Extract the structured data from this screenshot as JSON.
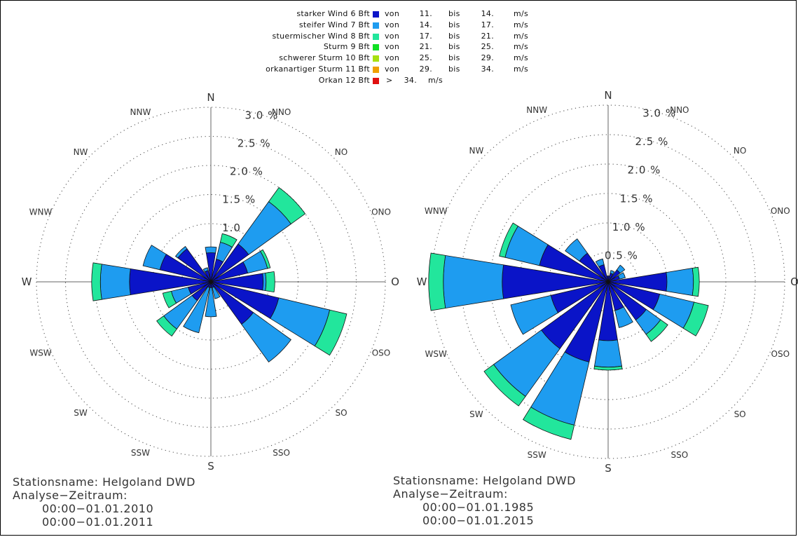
{
  "legend": [
    {
      "name": "starker Wind",
      "bft": "6 Bft",
      "color": "#0a14c8",
      "from_label": "von",
      "from": "11.",
      "to_label": "bis",
      "to": "14.",
      "unit": "m/s"
    },
    {
      "name": "steifer Wind",
      "bft": "7 Bft",
      "color": "#1e9cf0",
      "from_label": "von",
      "from": "14.",
      "to_label": "bis",
      "to": "17.",
      "unit": "m/s"
    },
    {
      "name": "stuermischer Wind",
      "bft": "8 Bft",
      "color": "#22e69c",
      "from_label": "von",
      "from": "17.",
      "to_label": "bis",
      "to": "21.",
      "unit": "m/s"
    },
    {
      "name": "Sturm",
      "bft": "9 Bft",
      "color": "#10e024",
      "from_label": "von",
      "from": "21.",
      "to_label": "bis",
      "to": "25.",
      "unit": "m/s"
    },
    {
      "name": "schwerer Sturm",
      "bft": "10 Bft",
      "color": "#a8e010",
      "from_label": "von",
      "from": "25.",
      "to_label": "bis",
      "to": "29.",
      "unit": "m/s"
    },
    {
      "name": "orkanartiger Sturm",
      "bft": "11 Bft",
      "color": "#f0a000",
      "from_label": "von",
      "from": "29.",
      "to_label": "bis",
      "to": "34.",
      "unit": "m/s"
    },
    {
      "name": "Orkan",
      "bft": "12 Bft",
      "color": "#e01010",
      "from_label": ">",
      "from": "34.",
      "unit": "m/s"
    }
  ],
  "chart_data": [
    {
      "type": "wind-rose",
      "directions": [
        "N",
        "NNO",
        "NO",
        "ONO",
        "O",
        "OSO",
        "SO",
        "SSO",
        "S",
        "SSW",
        "SW",
        "WSW",
        "W",
        "WNW",
        "NW",
        "NNW"
      ],
      "ring_labels": [
        "1.0",
        "1.5 %",
        "2.0 %",
        "2.5 %",
        "3.0 %"
      ],
      "rmax": 3.0,
      "classes": [
        "6 Bft",
        "7 Bft",
        "8 Bft"
      ],
      "series": [
        {
          "name": "6 Bft",
          "values": [
            0.5,
            0.4,
            0.8,
            0.65,
            0.9,
            1.2,
            0.9,
            0.1,
            0.1,
            0.1,
            0.4,
            0.4,
            1.4,
            0.9,
            0.7,
            0.2
          ]
        },
        {
          "name": "7 Bft",
          "values": [
            0.1,
            0.3,
            0.9,
            0.35,
            0.05,
            0.9,
            0.8,
            0.2,
            0.5,
            0.8,
            0.6,
            0.3,
            0.5,
            0.3,
            0.05,
            0.05
          ]
        },
        {
          "name": "8 Bft",
          "values": [
            0.0,
            0.15,
            0.3,
            0.05,
            0.15,
            0.3,
            0.0,
            0.0,
            0.0,
            0.0,
            0.15,
            0.15,
            0.15,
            0.0,
            0.0,
            0.0
          ]
        }
      ],
      "station_label": "Stationsname: Helgoland DWD",
      "period_label": "Analyse−Zeitraum:",
      "period_from": "00:00−01.01.2010",
      "period_to": "00:00−01.01.2011"
    },
    {
      "type": "wind-rose",
      "directions": [
        "N",
        "NNO",
        "NO",
        "ONO",
        "O",
        "OSO",
        "SO",
        "SSO",
        "S",
        "SSW",
        "SW",
        "WSW",
        "W",
        "WNW",
        "NW",
        "NNW"
      ],
      "ring_labels": [
        "0.5 %",
        "1.0 %",
        "1.5 %",
        "2.0 %",
        "2.5 %",
        "3.0 %"
      ],
      "rmax": 3.0,
      "classes": [
        "6 Bft",
        "7 Bft",
        "8 Bft"
      ],
      "series": [
        {
          "name": "6 Bft",
          "values": [
            0.1,
            0.15,
            0.25,
            0.2,
            1.0,
            0.9,
            0.8,
            0.5,
            1.0,
            1.4,
            1.4,
            1.0,
            1.8,
            1.2,
            0.6,
            0.3
          ]
        },
        {
          "name": "7 Bft",
          "values": [
            0.0,
            0.05,
            0.1,
            0.1,
            0.45,
            0.6,
            0.3,
            0.3,
            0.45,
            1.1,
            1.0,
            0.7,
            1.0,
            0.6,
            0.3,
            0.1
          ]
        },
        {
          "name": "8 Bft",
          "values": [
            0.0,
            0.0,
            0.0,
            0.0,
            0.1,
            0.25,
            0.15,
            0.0,
            0.05,
            0.25,
            0.2,
            0.0,
            0.25,
            0.1,
            0.0,
            0.0
          ]
        }
      ],
      "station_label": "Stationsname: Helgoland DWD",
      "period_label": "Analyse−Zeitraum:",
      "period_from": "00:00−01.01.1985",
      "period_to": "00:00−01.01.2015"
    }
  ]
}
